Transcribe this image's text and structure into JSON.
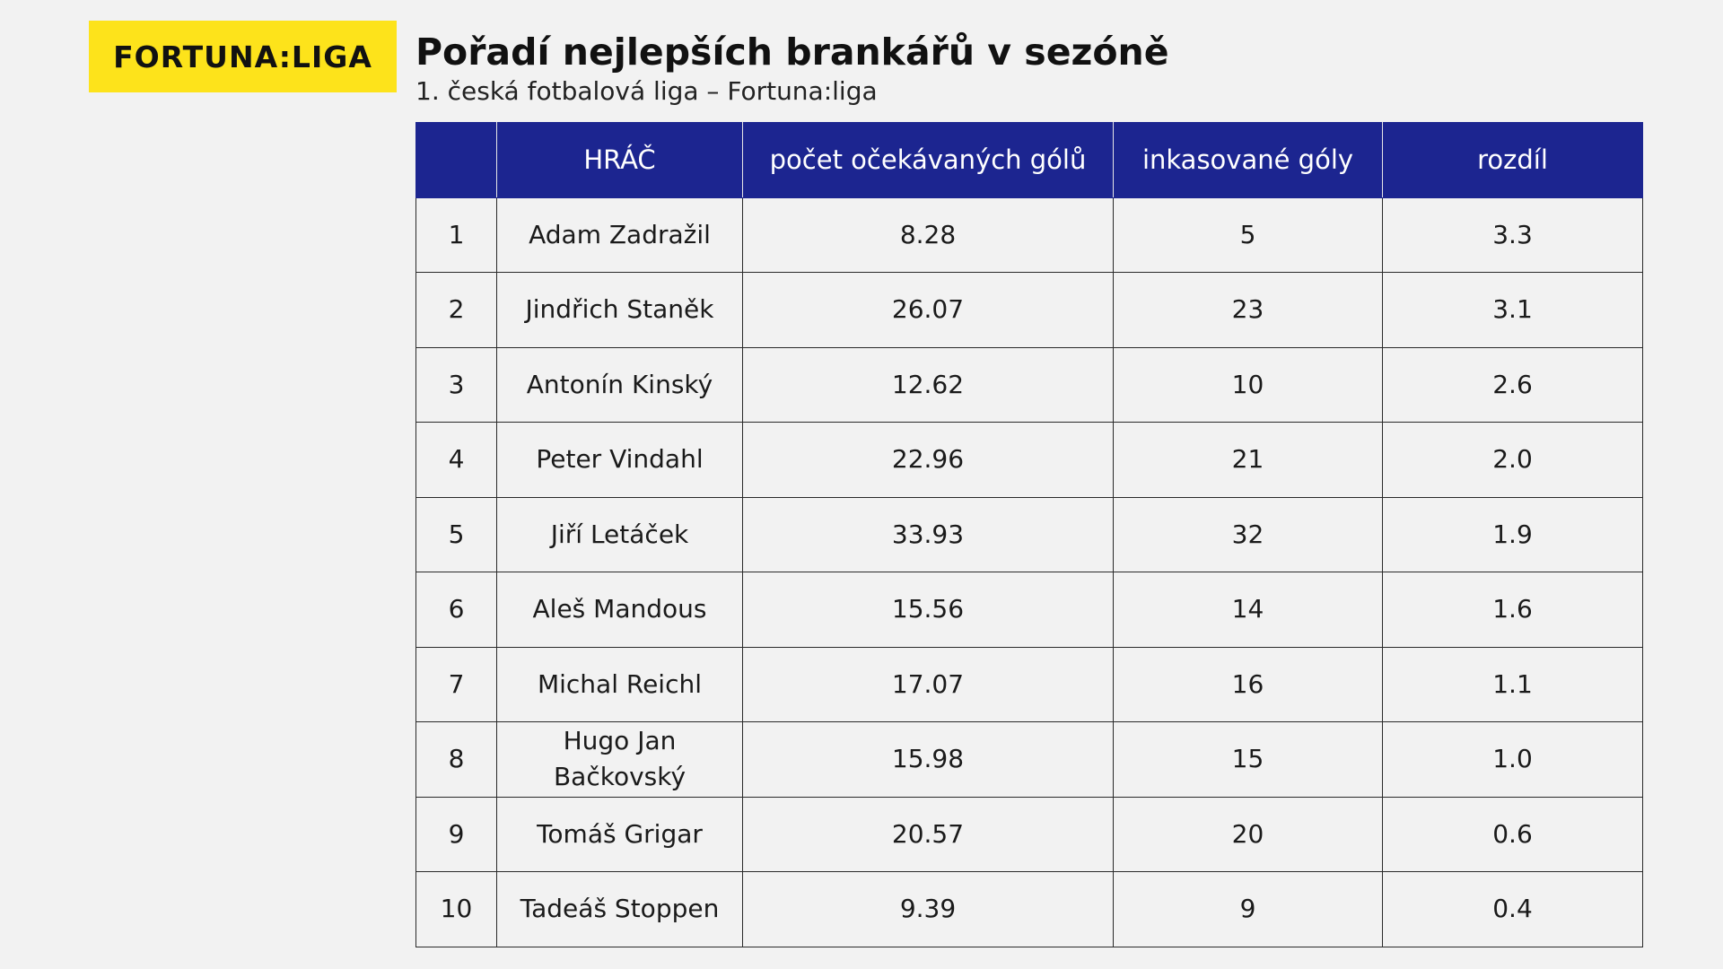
{
  "logo": {
    "text": "FORTUNA:LIGA",
    "bg_color": "#fde31b"
  },
  "title": "Pořadí nejlepších brankářů v sezóně",
  "subtitle": "1. česká fotbalová liga – Fortuna:liga",
  "colors": {
    "header_bg": "#1c2590",
    "header_text": "#ffffff",
    "page_bg": "#f2f2f2"
  },
  "table": {
    "columns": [
      "",
      "HRÁČ",
      "počet očekávaných gólů",
      "inkasované góly",
      "rozdíl"
    ],
    "rows": [
      {
        "rank": "1",
        "player": "Adam Zadražil",
        "expected_goals": "8.28",
        "goals_conceded": "5",
        "difference": "3.3"
      },
      {
        "rank": "2",
        "player": "Jindřich Staněk",
        "expected_goals": "26.07",
        "goals_conceded": "23",
        "difference": "3.1"
      },
      {
        "rank": "3",
        "player": "Antonín Kinský",
        "expected_goals": "12.62",
        "goals_conceded": "10",
        "difference": "2.6"
      },
      {
        "rank": "4",
        "player": "Peter Vindahl",
        "expected_goals": "22.96",
        "goals_conceded": "21",
        "difference": "2.0"
      },
      {
        "rank": "5",
        "player": "Jiří Letáček",
        "expected_goals": "33.93",
        "goals_conceded": "32",
        "difference": "1.9"
      },
      {
        "rank": "6",
        "player": "Aleš Mandous",
        "expected_goals": "15.56",
        "goals_conceded": "14",
        "difference": "1.6"
      },
      {
        "rank": "7",
        "player": "Michal Reichl",
        "expected_goals": "17.07",
        "goals_conceded": "16",
        "difference": "1.1"
      },
      {
        "rank": "8",
        "player": "Hugo Jan Bačkovský",
        "expected_goals": "15.98",
        "goals_conceded": "15",
        "difference": "1.0"
      },
      {
        "rank": "9",
        "player": "Tomáš Grigar",
        "expected_goals": "20.57",
        "goals_conceded": "20",
        "difference": "0.6"
      },
      {
        "rank": "10",
        "player": "Tadeáš Stoppen",
        "expected_goals": "9.39",
        "goals_conceded": "9",
        "difference": "0.4"
      }
    ]
  }
}
